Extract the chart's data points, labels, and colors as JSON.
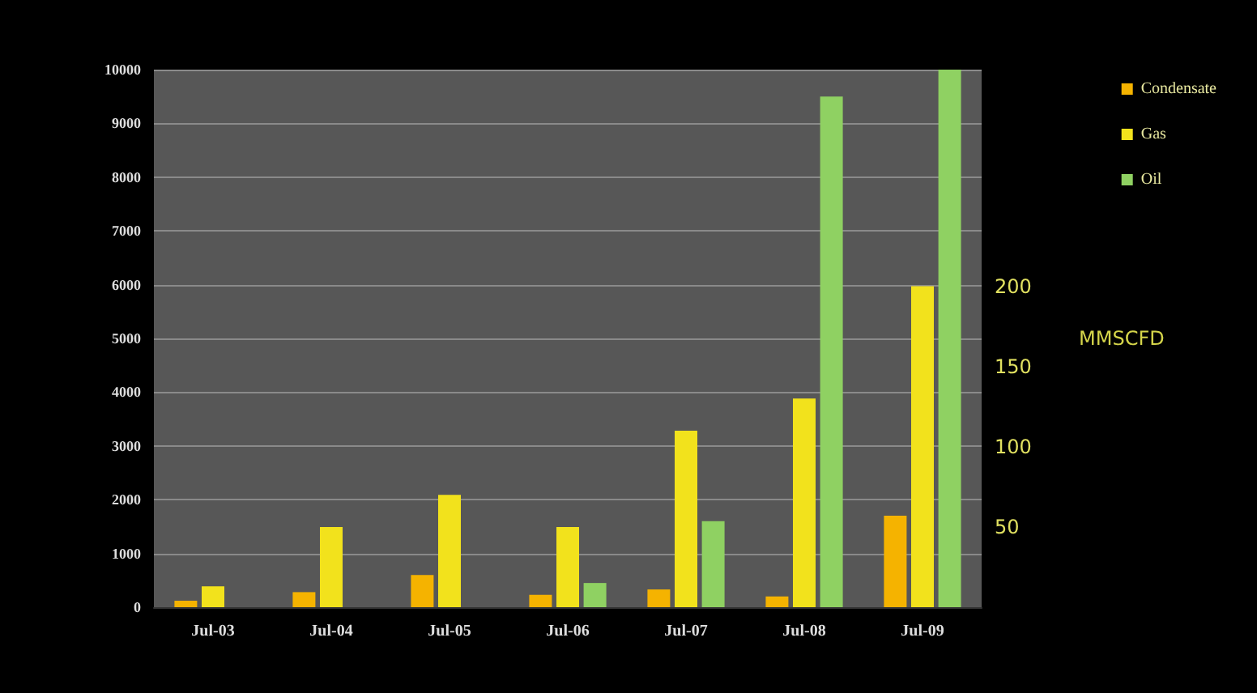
{
  "chart_data": {
    "type": "bar",
    "categories": [
      "Jul-03",
      "Jul-04",
      "Jul-05",
      "Jul-06",
      "Jul-07",
      "Jul-08",
      "Jul-09"
    ],
    "series": [
      {
        "name": "Condensate",
        "color": "#f5b300",
        "values": [
          120,
          280,
          600,
          230,
          330,
          200,
          1700
        ]
      },
      {
        "name": "Gas",
        "color": "#f2e21c",
        "axis": "y2",
        "values": [
          13,
          50,
          70,
          50,
          110,
          130,
          200
        ]
      },
      {
        "name": "Oil",
        "color": "#8fd162",
        "values": [
          0,
          0,
          0,
          450,
          1600,
          9500,
          10000
        ]
      }
    ],
    "y2label": "MMSCFD",
    "ylim": [
      0,
      10000
    ],
    "yticks": [
      0,
      1000,
      2000,
      3000,
      4000,
      5000,
      6000,
      7000,
      8000,
      9000,
      10000
    ],
    "y2lim": [
      0,
      335
    ],
    "y2ticks": [
      50,
      100,
      150,
      200
    ],
    "grid": "y",
    "legend": "top right"
  }
}
